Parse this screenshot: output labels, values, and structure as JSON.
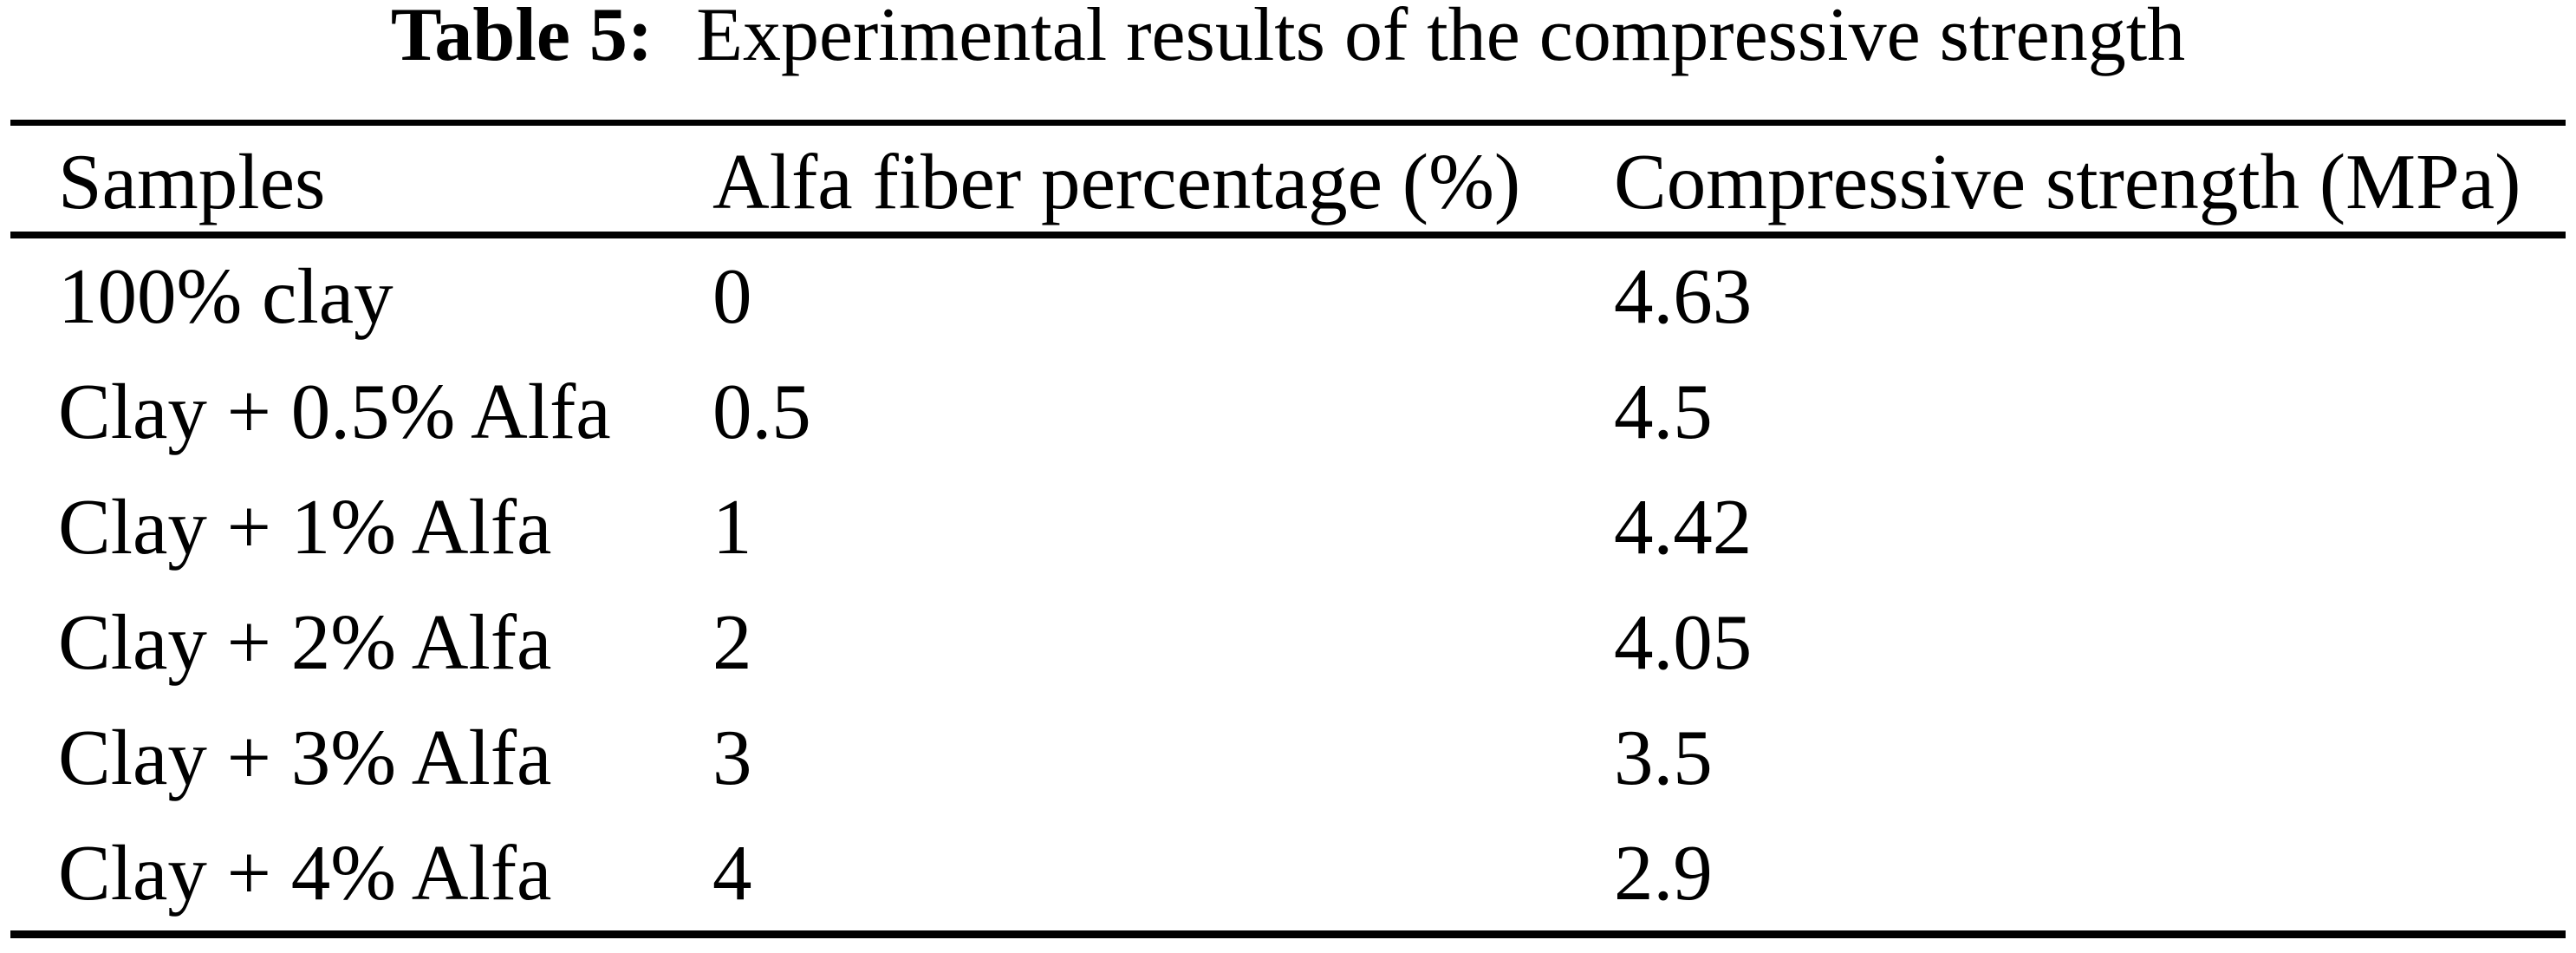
{
  "caption": {
    "label": "Table 5:",
    "text": "Experimental results of the compressive strength"
  },
  "table": {
    "headers": [
      "Samples",
      "Alfa fiber percentage (%)",
      "Compressive strength (MPa)"
    ],
    "rows": [
      [
        "100% clay",
        "0",
        "4.63"
      ],
      [
        "Clay + 0.5% Alfa",
        "0.5",
        "4.5"
      ],
      [
        "Clay + 1% Alfa",
        "1",
        "4.42"
      ],
      [
        "Clay + 2% Alfa",
        "2",
        "4.05"
      ],
      [
        "Clay + 3% Alfa",
        "3",
        "3.5"
      ],
      [
        "Clay + 4% Alfa",
        "4",
        "2.9"
      ]
    ]
  },
  "colors": {
    "text": "#000000",
    "background": "#ffffff",
    "rule": "#000000"
  },
  "chart_data": {
    "type": "table",
    "title": "Table 5: Experimental results of the compressive strength",
    "columns": [
      "Samples",
      "Alfa fiber percentage (%)",
      "Compressive strength (MPa)"
    ],
    "rows": [
      [
        "100% clay",
        0,
        4.63
      ],
      [
        "Clay + 0.5% Alfa",
        0.5,
        4.5
      ],
      [
        "Clay + 1% Alfa",
        1,
        4.42
      ],
      [
        "Clay + 2% Alfa",
        2,
        4.05
      ],
      [
        "Clay + 3% Alfa",
        3,
        3.5
      ],
      [
        "Clay + 4% Alfa",
        4,
        2.9
      ]
    ]
  }
}
